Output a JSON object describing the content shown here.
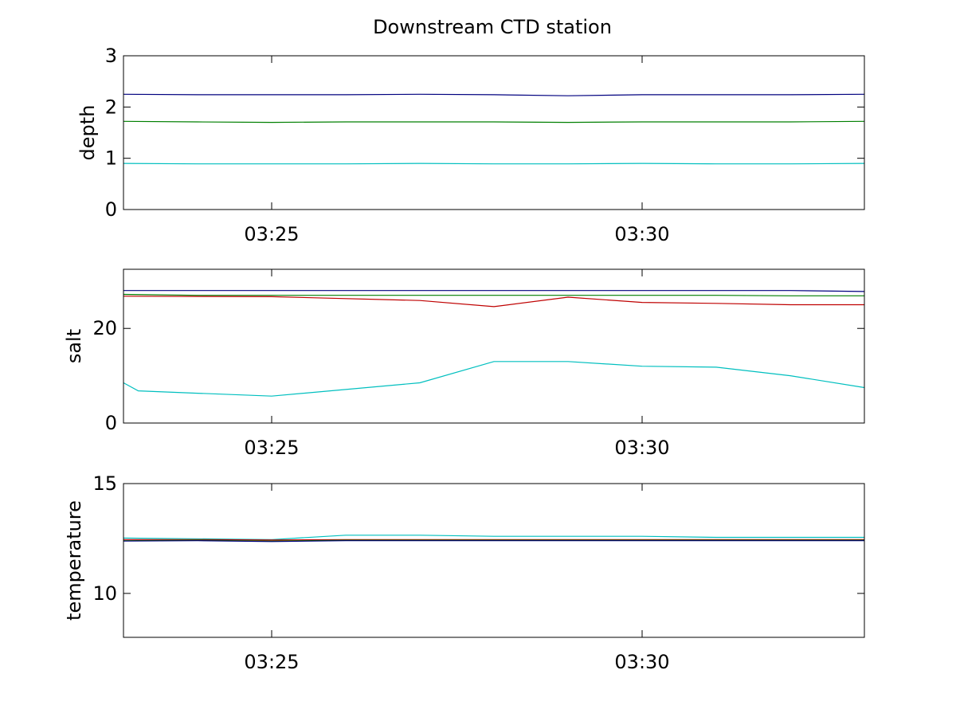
{
  "chart_data": {
    "type": "line",
    "title": "Downstream CTD station",
    "x_ticks": [
      "03:25",
      "03:30"
    ],
    "x_tick_times": [
      "03:25",
      "03:30"
    ],
    "xlim": [
      "03:23",
      "03:33"
    ],
    "panels": [
      {
        "ylabel": "depth",
        "ylim": [
          0,
          3
        ],
        "y_ticks": [
          0,
          1,
          2,
          3
        ],
        "series": [
          {
            "color": "#00007f",
            "x": [
              "03:23",
              "03:24",
              "03:25",
              "03:26",
              "03:27",
              "03:28",
              "03:29",
              "03:30",
              "03:31",
              "03:32",
              "03:33"
            ],
            "values": [
              2.25,
              2.24,
              2.24,
              2.24,
              2.25,
              2.24,
              2.22,
              2.24,
              2.24,
              2.24,
              2.25
            ]
          },
          {
            "color": "#007f00",
            "x": [
              "03:23",
              "03:24",
              "03:25",
              "03:26",
              "03:27",
              "03:28",
              "03:29",
              "03:30",
              "03:31",
              "03:32",
              "03:33"
            ],
            "values": [
              1.72,
              1.71,
              1.7,
              1.71,
              1.71,
              1.71,
              1.7,
              1.71,
              1.71,
              1.71,
              1.72
            ]
          },
          {
            "color": "#00bfbf",
            "x": [
              "03:23",
              "03:24",
              "03:25",
              "03:26",
              "03:27",
              "03:28",
              "03:29",
              "03:30",
              "03:31",
              "03:32",
              "03:33"
            ],
            "values": [
              0.9,
              0.89,
              0.89,
              0.89,
              0.9,
              0.89,
              0.89,
              0.9,
              0.89,
              0.89,
              0.9
            ]
          }
        ]
      },
      {
        "ylabel": "salt",
        "ylim": [
          0,
          32.5
        ],
        "y_ticks": [
          0,
          20
        ],
        "series": [
          {
            "color": "#00007f",
            "x": [
              "03:23",
              "03:24",
              "03:25",
              "03:26",
              "03:27",
              "03:28",
              "03:29",
              "03:30",
              "03:31",
              "03:32",
              "03:33"
            ],
            "values": [
              28.0,
              28.0,
              28.0,
              28.0,
              28.0,
              28.0,
              28.0,
              28.0,
              28.0,
              28.0,
              27.8
            ]
          },
          {
            "color": "#007f00",
            "x": [
              "03:23",
              "03:24",
              "03:25",
              "03:26",
              "03:27",
              "03:28",
              "03:29",
              "03:30",
              "03:31",
              "03:32",
              "03:33"
            ],
            "values": [
              27.2,
              27.0,
              27.0,
              27.0,
              27.0,
              27.0,
              27.0,
              27.0,
              27.0,
              26.9,
              26.9
            ]
          },
          {
            "color": "#bf0000",
            "x": [
              "03:23",
              "03:25",
              "03:27",
              "03:28",
              "03:29",
              "03:30",
              "03:31",
              "03:32",
              "03:33"
            ],
            "values": [
              26.8,
              26.7,
              25.9,
              24.6,
              26.6,
              25.5,
              25.3,
              25.0,
              25.0
            ]
          },
          {
            "color": "#00bfbf",
            "x": [
              "03:23",
              "03:23.2",
              "03:24",
              "03:25",
              "03:27",
              "03:28",
              "03:29",
              "03:30",
              "03:31",
              "03:32",
              "03:33"
            ],
            "values": [
              8.5,
              6.8,
              6.3,
              5.7,
              8.5,
              13.0,
              13.0,
              12.0,
              11.8,
              10.0,
              7.5
            ]
          }
        ]
      },
      {
        "ylabel": "temperature",
        "ylim": [
          8,
          15
        ],
        "y_ticks": [
          10,
          15
        ],
        "series": [
          {
            "color": "#00bfbf",
            "x": [
              "03:23",
              "03:25",
              "03:26",
              "03:27",
              "03:28",
              "03:29",
              "03:30",
              "03:31",
              "03:32",
              "03:33"
            ],
            "values": [
              12.52,
              12.45,
              12.65,
              12.65,
              12.6,
              12.6,
              12.6,
              12.55,
              12.55,
              12.55
            ]
          },
          {
            "color": "#bf0000",
            "x": [
              "03:23",
              "03:24",
              "03:25",
              "03:26",
              "03:27",
              "03:28",
              "03:29",
              "03:30",
              "03:31",
              "03:32",
              "03:33"
            ],
            "values": [
              12.45,
              12.45,
              12.43,
              12.45,
              12.45,
              12.45,
              12.45,
              12.45,
              12.45,
              12.45,
              12.45
            ]
          },
          {
            "color": "#007f00",
            "x": [
              "03:23",
              "03:24",
              "03:25",
              "03:26",
              "03:27",
              "03:28",
              "03:29",
              "03:30",
              "03:31",
              "03:32",
              "03:33"
            ],
            "values": [
              12.4,
              12.42,
              12.38,
              12.42,
              12.42,
              12.42,
              12.42,
              12.42,
              12.42,
              12.42,
              12.42
            ]
          },
          {
            "color": "#00007f",
            "x": [
              "03:23",
              "03:24",
              "03:25",
              "03:26",
              "03:27",
              "03:28",
              "03:29",
              "03:30",
              "03:31",
              "03:32",
              "03:33"
            ],
            "values": [
              12.38,
              12.4,
              12.36,
              12.4,
              12.4,
              12.4,
              12.4,
              12.4,
              12.4,
              12.4,
              12.4
            ]
          }
        ]
      }
    ]
  }
}
